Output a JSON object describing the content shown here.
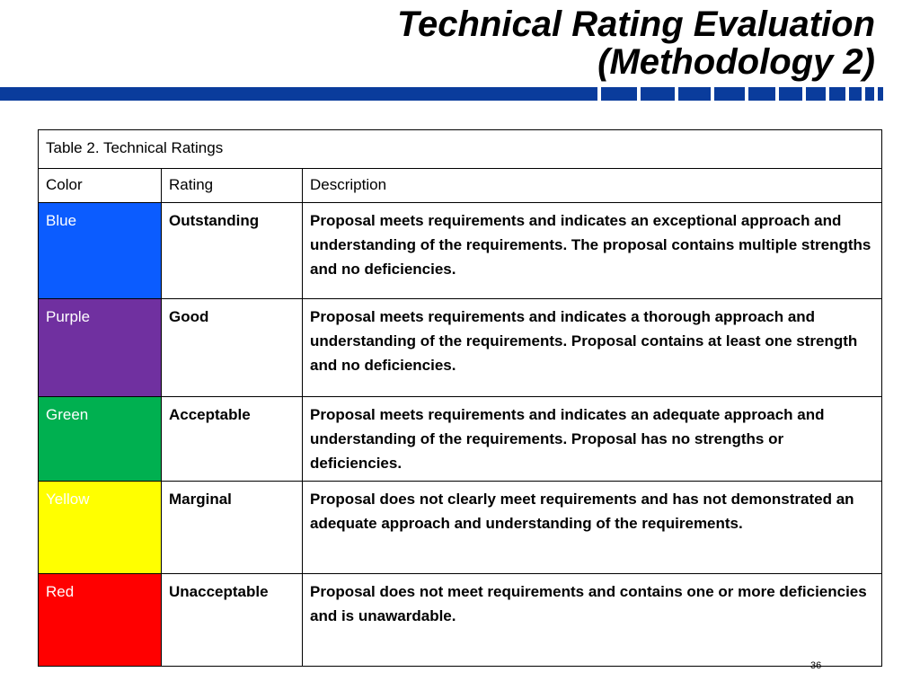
{
  "slide": {
    "title_line1": "Technical Rating Evaluation",
    "title_line2": "(Methodology 2)",
    "page_number": "36",
    "accent_color": "#0a3c9c"
  },
  "table": {
    "caption": "Table 2. Technical Ratings",
    "headers": {
      "color": "Color",
      "rating": "Rating",
      "description": "Description"
    },
    "rows": [
      {
        "color": "Blue",
        "swatch": "#0b5cff",
        "rating": "Outstanding",
        "description": "Proposal meets requirements and indicates an exceptional approach and understanding of the requirements. The proposal contains multiple strengths and no deficiencies."
      },
      {
        "color": "Purple",
        "swatch": "#7030a0",
        "rating": "Good",
        "description": "Proposal meets requirements and indicates a thorough approach and understanding of the requirements. Proposal contains at least one strength and no deficiencies."
      },
      {
        "color": "Green",
        "swatch": "#00b050",
        "rating": "Acceptable",
        "description": "Proposal meets requirements and indicates an adequate approach and understanding of the requirements. Proposal has no strengths or deficiencies."
      },
      {
        "color": "Yellow",
        "swatch": "#ffff00",
        "rating": "Marginal",
        "description": "Proposal does not clearly meet requirements and has not demonstrated an adequate approach and understanding of the requirements."
      },
      {
        "color": "Red",
        "swatch": "#ff0000",
        "rating": "Unacceptable",
        "description": "Proposal does not meet requirements and contains one or more deficiencies and is unawardable."
      }
    ]
  }
}
